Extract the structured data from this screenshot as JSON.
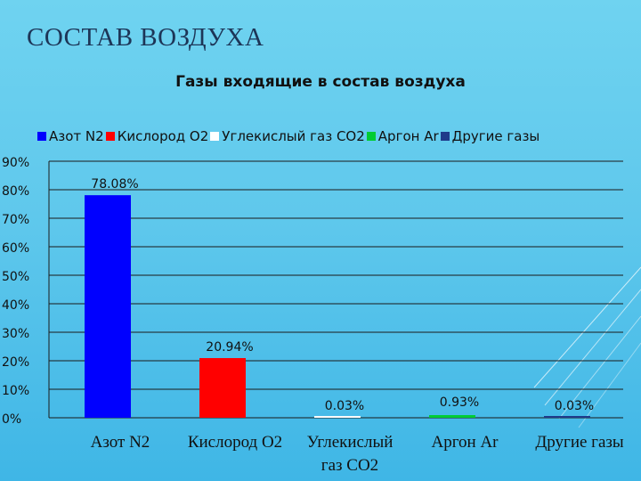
{
  "slide_title": "СОСТАВ ВОЗДУХА",
  "chart_data": {
    "type": "bar",
    "title": "Газы входящие в состав воздуха",
    "categories": [
      "Азот N2",
      "Кислород O2",
      "Углекислый газ CO2",
      "Аргон Ar",
      "Другие газы"
    ],
    "category_lines": [
      [
        "Азот N2"
      ],
      [
        "Кислород O2"
      ],
      [
        "Углекислый",
        "газ CO2"
      ],
      [
        "Аргон Ar"
      ],
      [
        "Другие газы"
      ]
    ],
    "values": [
      78.08,
      20.94,
      0.03,
      0.93,
      0.03
    ],
    "data_labels": [
      "78.08%",
      "20.94%",
      "0.03%",
      "0.93%",
      "0.03%"
    ],
    "colors": [
      "#0000ff",
      "#ff0000",
      "#ffffff",
      "#00cc33",
      "#1f3a8a"
    ],
    "legend": {
      "position": "top",
      "entries": [
        "Азот N2",
        "Кислород O2",
        "Углекислый газ CO2",
        "Аргон Ar",
        "Другие газы"
      ]
    },
    "ylim": [
      0,
      90
    ],
    "yticks": [
      "0%",
      "10%",
      "20%",
      "30%",
      "40%",
      "50%",
      "60%",
      "70%",
      "80%",
      "90%"
    ],
    "grid": true,
    "xlabel": "",
    "ylabel": ""
  }
}
